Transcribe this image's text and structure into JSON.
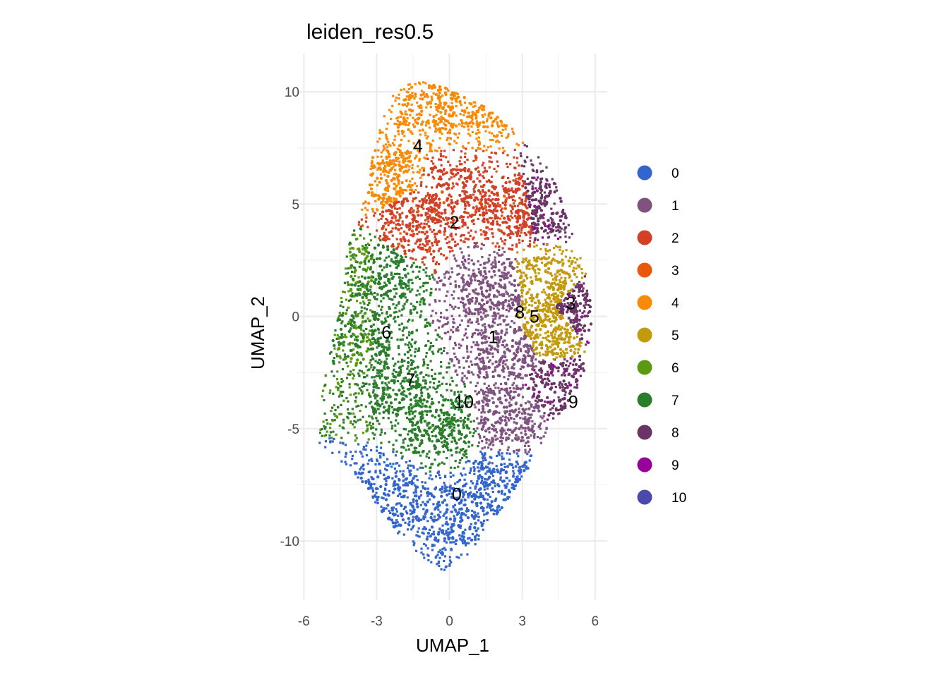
{
  "chart_data": {
    "type": "scatter",
    "title": "leiden_res0.5",
    "xlabel": "UMAP_1",
    "ylabel": "UMAP_2",
    "xlim": [
      -6.3,
      6.5
    ],
    "ylim": [
      -12.6,
      11.7
    ],
    "x_ticks": [
      -6,
      -3,
      0,
      3,
      6
    ],
    "x_tick_labels": [
      "-6",
      "-3",
      "0",
      "3",
      "6"
    ],
    "y_ticks": [
      -10,
      -5,
      0,
      5,
      10
    ],
    "y_tick_labels": [
      "-10",
      "-5",
      "0",
      "5",
      "10"
    ],
    "grid": true,
    "legend_position": "right",
    "series": [
      {
        "name": "0",
        "color": "#3366cc",
        "centroid": [
          0.3,
          -7.9
        ]
      },
      {
        "name": "1",
        "color": "#7f5280",
        "centroid": [
          1.8,
          -0.9
        ]
      },
      {
        "name": "2",
        "color": "#d24126",
        "centroid": [
          0.2,
          4.2
        ]
      },
      {
        "name": "3",
        "color": "#e8590c",
        "centroid": [
          5.0,
          0.6
        ]
      },
      {
        "name": "4",
        "color": "#f98a07",
        "centroid": [
          -1.3,
          7.6
        ]
      },
      {
        "name": "5",
        "color": "#c49a0d",
        "centroid": [
          3.5,
          0.0
        ]
      },
      {
        "name": "6",
        "color": "#5a9a10",
        "centroid": [
          -2.6,
          -0.7
        ]
      },
      {
        "name": "7",
        "color": "#2a7d2a",
        "centroid": [
          -1.6,
          -2.8
        ]
      },
      {
        "name": "8",
        "color": "#6a3566",
        "centroid": [
          2.9,
          0.2
        ]
      },
      {
        "name": "9",
        "color": "#990099",
        "centroid": [
          5.1,
          -3.8
        ]
      },
      {
        "name": "10",
        "color": "#4a4aaa",
        "centroid": [
          0.6,
          -3.8
        ]
      }
    ]
  }
}
